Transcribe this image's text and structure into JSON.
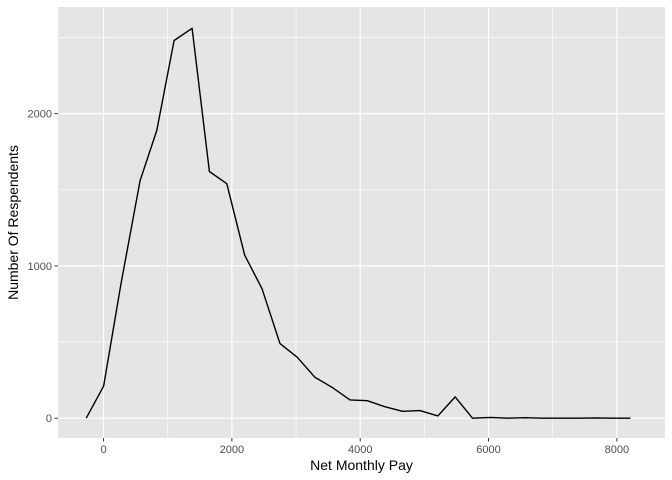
{
  "chart_data": {
    "type": "line",
    "xlabel": "Net Monthly Pay",
    "ylabel": "Number Of Respendents",
    "xlim": [
      -710,
      8750
    ],
    "ylim": [
      -130,
      2700
    ],
    "x_ticks": [
      0,
      2000,
      4000,
      6000,
      8000
    ],
    "x_tick_labels": [
      "0",
      "2000",
      "4000",
      "6000",
      "8000"
    ],
    "y_ticks": [
      0,
      1000,
      2000
    ],
    "y_tick_labels": [
      "0",
      "1000",
      "2000"
    ],
    "grid": true,
    "series": [
      {
        "x": [
          -270,
          0,
          270,
          570,
          830,
          1100,
          1380,
          1650,
          1920,
          2200,
          2470,
          2750,
          3020,
          3290,
          3570,
          3840,
          4110,
          4390,
          4660,
          4930,
          5210,
          5480,
          5750,
          6030,
          6300,
          6570,
          6850,
          7120,
          7390,
          7670,
          7940,
          8210
        ],
        "y": [
          0,
          210,
          880,
          1560,
          1890,
          2480,
          2560,
          1620,
          1540,
          1070,
          850,
          490,
          400,
          270,
          200,
          120,
          115,
          75,
          45,
          50,
          15,
          140,
          0,
          5,
          0,
          3,
          0,
          0,
          0,
          2,
          0,
          0
        ]
      }
    ],
    "colors": {
      "panel": "#e5e5e5",
      "grid": "#ffffff",
      "line": "#000000",
      "tick_text": "#4d4d4d",
      "tick_mark": "#333333"
    }
  }
}
